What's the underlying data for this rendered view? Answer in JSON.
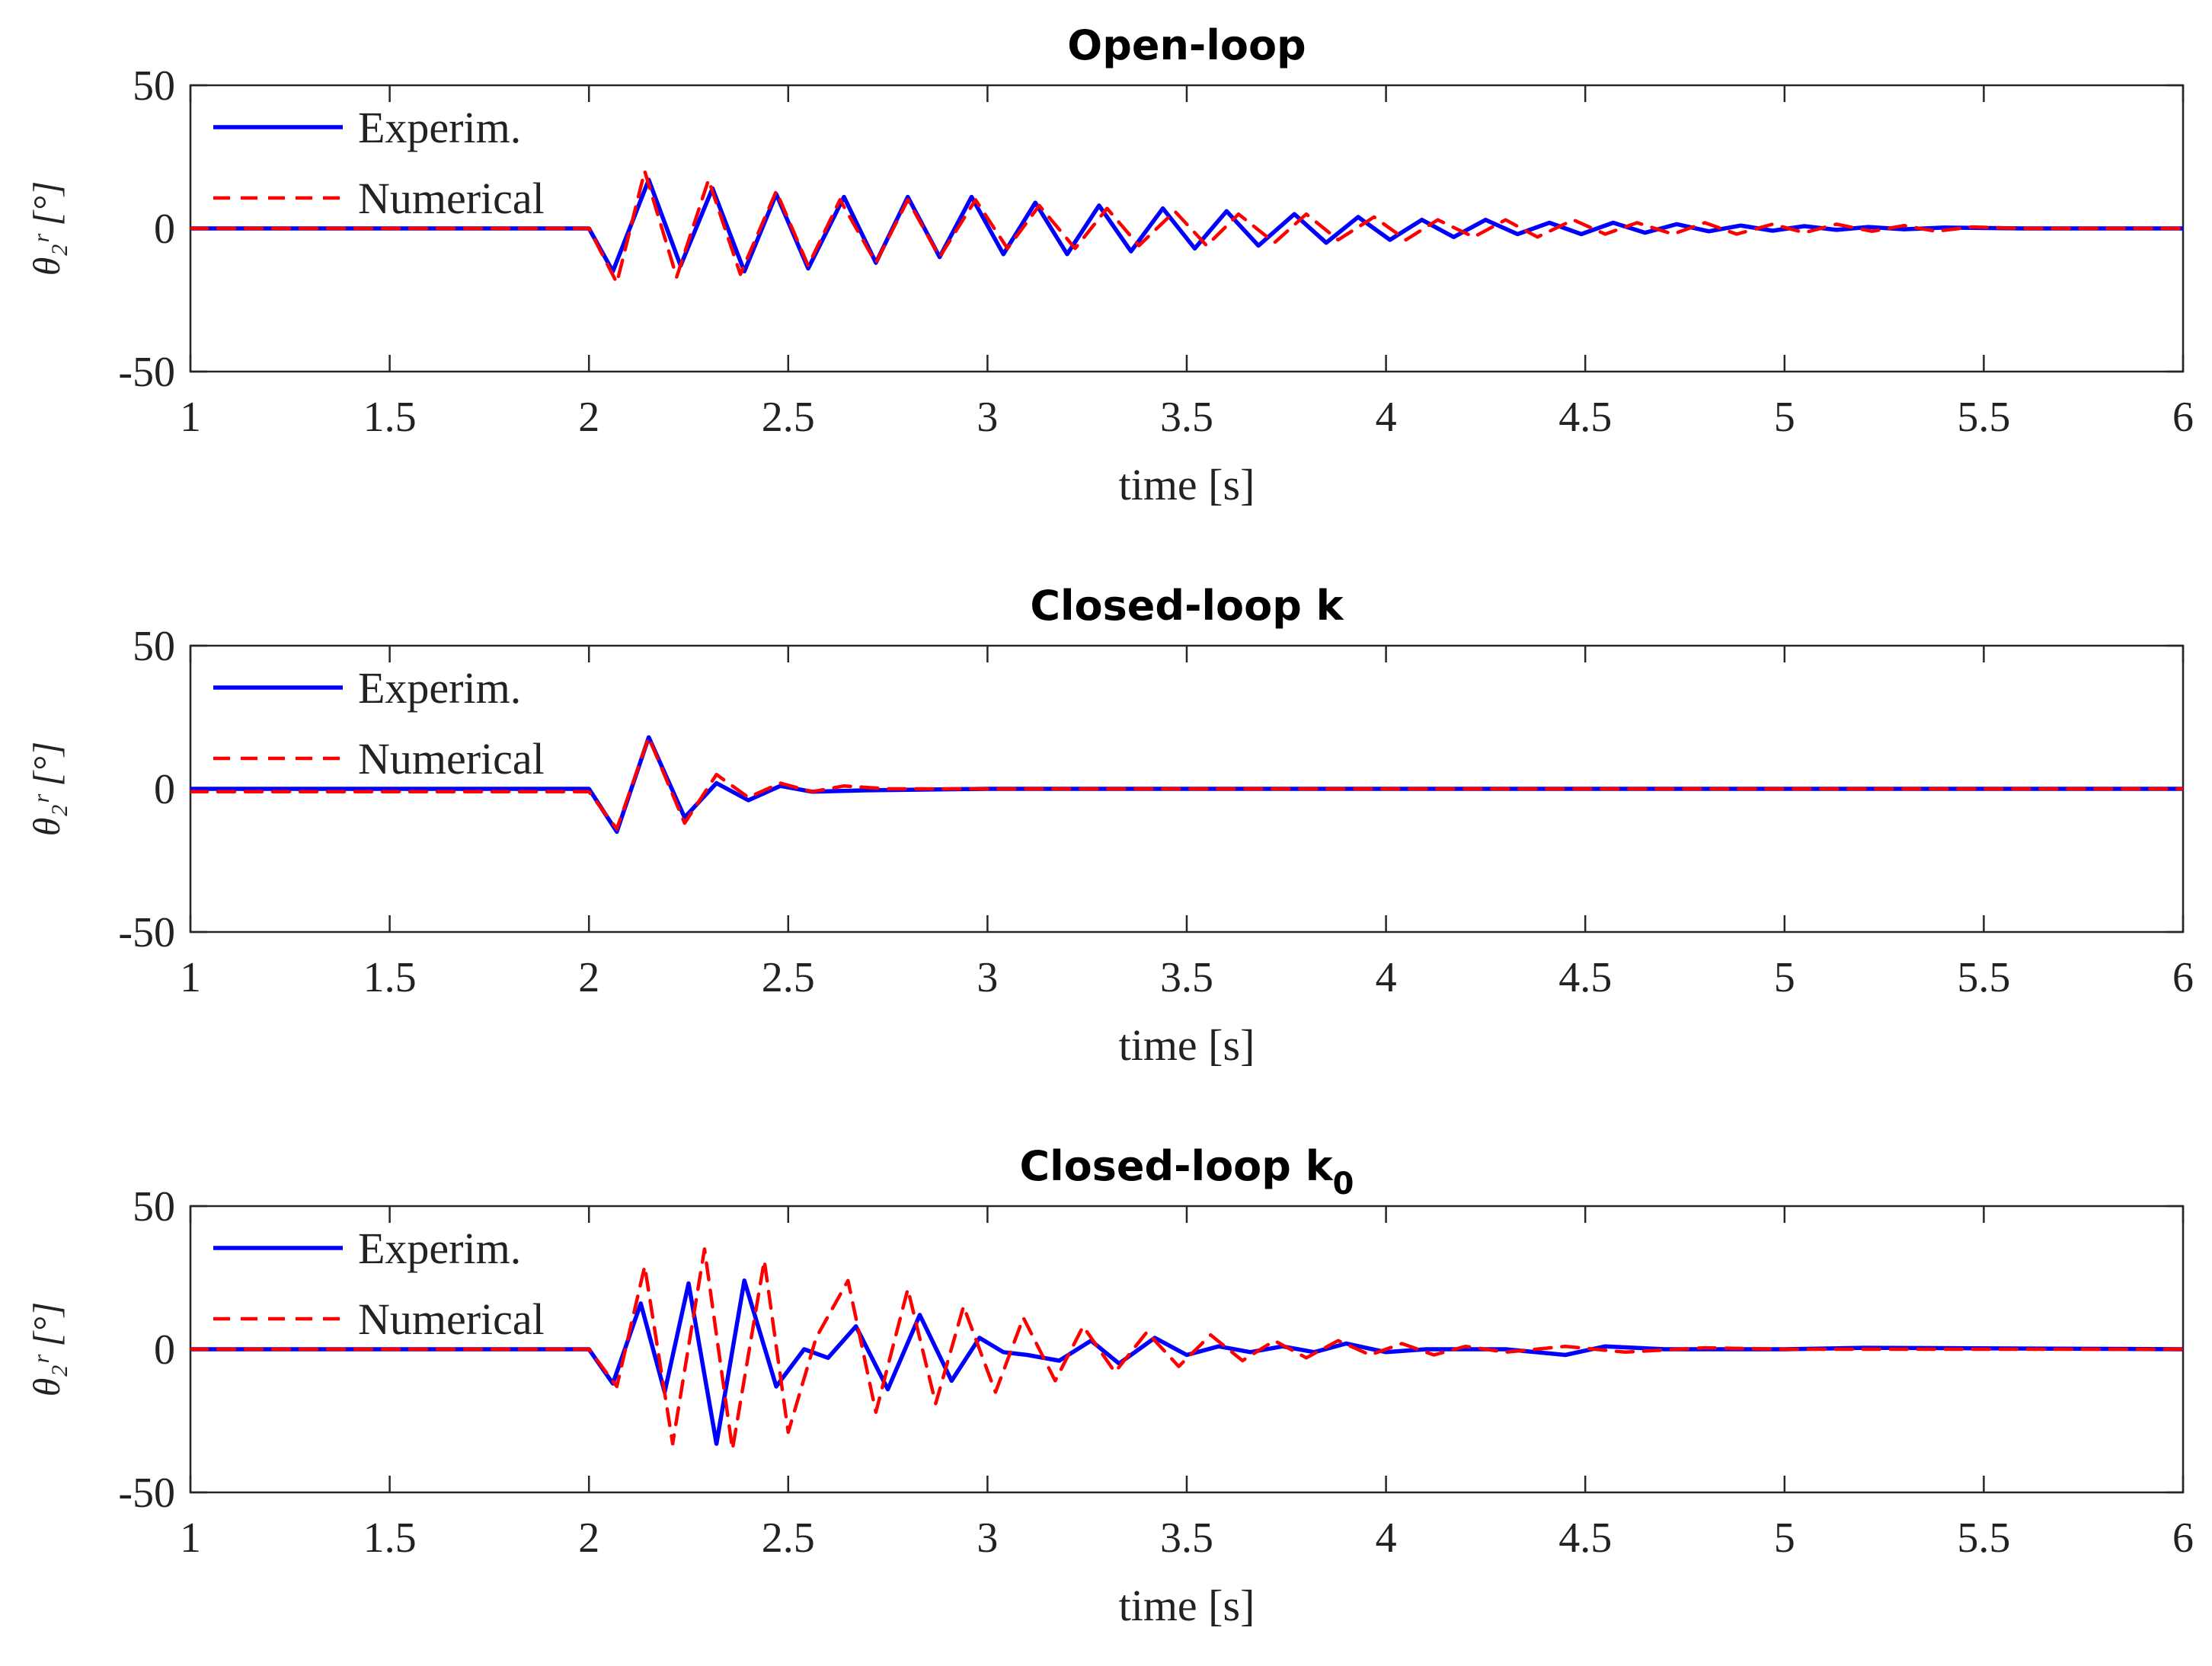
{
  "chart_data": [
    {
      "type": "line",
      "title": "Open-loop",
      "xlabel": "time [s]",
      "ylabel": "θ₂ʳ [°]",
      "xlim": [
        1,
        6
      ],
      "ylim": [
        -50,
        50
      ],
      "xticks": [
        "1",
        "1.5",
        "2",
        "2.5",
        "3",
        "3.5",
        "4",
        "4.5",
        "5",
        "5.5",
        "6"
      ],
      "yticks": [
        "50",
        "0",
        "-50"
      ],
      "legend": [
        "Experim.",
        "Numerical"
      ],
      "series": [
        {
          "name": "Experim.",
          "color": "#0000ff",
          "style": "solid",
          "x": [
            1,
            2.0,
            2.06,
            2.15,
            2.23,
            2.31,
            2.39,
            2.47,
            2.55,
            2.64,
            2.72,
            2.8,
            2.88,
            2.96,
            3.04,
            3.12,
            3.2,
            3.28,
            3.36,
            3.44,
            3.52,
            3.6,
            3.68,
            3.77,
            3.85,
            3.93,
            4.01,
            4.09,
            4.17,
            4.25,
            4.33,
            4.41,
            4.49,
            4.57,
            4.65,
            4.73,
            4.81,
            4.89,
            4.97,
            5.05,
            5.13,
            5.21,
            5.3,
            5.4,
            5.6,
            6
          ],
          "y": [
            0,
            0,
            -15,
            17,
            -13,
            14,
            -15,
            12,
            -14,
            11,
            -12,
            11,
            -10,
            11,
            -9,
            9,
            -9,
            8,
            -8,
            7,
            -7,
            6,
            -6,
            5,
            -5,
            4,
            -4,
            3,
            -3,
            3,
            -2,
            2,
            -2,
            2,
            -1.5,
            1.5,
            -1,
            1,
            -0.8,
            0.8,
            -0.5,
            0.5,
            -0.3,
            0.3,
            0,
            0
          ]
        },
        {
          "name": "Numerical",
          "color": "#ff0000",
          "style": "dashed",
          "x": [
            1,
            2.0,
            2.07,
            2.14,
            2.22,
            2.3,
            2.38,
            2.47,
            2.55,
            2.63,
            2.72,
            2.8,
            2.88,
            2.97,
            3.05,
            3.13,
            3.22,
            3.3,
            3.38,
            3.47,
            3.55,
            3.63,
            3.72,
            3.8,
            3.88,
            3.97,
            4.05,
            4.13,
            4.22,
            4.3,
            4.38,
            4.47,
            4.55,
            4.63,
            4.72,
            4.8,
            4.88,
            4.97,
            5.05,
            5.13,
            5.22,
            5.3,
            5.38,
            5.47,
            5.6,
            6
          ],
          "y": [
            0,
            0,
            -19,
            20,
            -17,
            17,
            -16,
            13,
            -13,
            10,
            -12,
            10,
            -10,
            10,
            -7,
            8,
            -7,
            7,
            -6,
            6,
            -6,
            5,
            -5,
            5,
            -4,
            4,
            -4,
            3,
            -3,
            3,
            -3,
            3,
            -2,
            2,
            -2,
            2,
            -2,
            1.5,
            -1.5,
            1.5,
            -1,
            1,
            -1,
            0.5,
            0,
            0
          ]
        }
      ]
    },
    {
      "type": "line",
      "title": "Closed-loop  k",
      "xlabel": "time [s]",
      "ylabel": "θ₂ʳ [°]",
      "xlim": [
        1,
        6
      ],
      "ylim": [
        -50,
        50
      ],
      "xticks": [
        "1",
        "1.5",
        "2",
        "2.5",
        "3",
        "3.5",
        "4",
        "4.5",
        "5",
        "5.5",
        "6"
      ],
      "yticks": [
        "50",
        "0",
        "-50"
      ],
      "legend": [
        "Experim.",
        "Numerical"
      ],
      "series": [
        {
          "name": "Experim.",
          "color": "#0000ff",
          "style": "solid",
          "x": [
            1,
            2.0,
            2.07,
            2.15,
            2.24,
            2.32,
            2.4,
            2.48,
            2.56,
            2.7,
            3,
            6
          ],
          "y": [
            0,
            0,
            -15,
            18,
            -10,
            2,
            -4,
            1,
            -1,
            -0.5,
            0,
            0
          ]
        },
        {
          "name": "Numerical",
          "color": "#ff0000",
          "style": "dashed",
          "x": [
            1,
            2.0,
            2.07,
            2.15,
            2.24,
            2.32,
            2.4,
            2.48,
            2.56,
            2.64,
            2.75,
            3,
            6
          ],
          "y": [
            -1,
            -1,
            -14,
            18,
            -12,
            5,
            -3,
            2,
            -1,
            1,
            0,
            0,
            0
          ]
        }
      ]
    },
    {
      "type": "line",
      "title": "Closed-loop  k",
      "title_subscript": "0",
      "xlabel": "time [s]",
      "ylabel": "θ₂ʳ [°]",
      "xlim": [
        1,
        6
      ],
      "ylim": [
        -50,
        50
      ],
      "xticks": [
        "1",
        "1.5",
        "2",
        "2.5",
        "3",
        "3.5",
        "4",
        "4.5",
        "5",
        "5.5",
        "6"
      ],
      "yticks": [
        "50",
        "0",
        "-50"
      ],
      "legend": [
        "Experim.",
        "Numerical"
      ],
      "series": [
        {
          "name": "Experim.",
          "color": "#0000ff",
          "style": "solid",
          "x": [
            1,
            2.0,
            2.06,
            2.13,
            2.19,
            2.25,
            2.32,
            2.39,
            2.47,
            2.54,
            2.6,
            2.67,
            2.75,
            2.83,
            2.91,
            2.98,
            3.04,
            3.1,
            3.18,
            3.26,
            3.33,
            3.42,
            3.5,
            3.58,
            3.66,
            3.74,
            3.82,
            3.9,
            4.0,
            4.1,
            4.3,
            4.45,
            4.55,
            4.7,
            5.0,
            5.2,
            6
          ],
          "y": [
            0,
            0,
            -12,
            16,
            -15,
            23,
            -33,
            24,
            -13,
            0,
            -3,
            8,
            -14,
            12,
            -11,
            4,
            -1,
            -2,
            -4,
            3,
            -5,
            4,
            -2,
            1,
            -1,
            1,
            -1,
            2,
            -1,
            0,
            0,
            -2,
            1,
            0,
            0,
            0.5,
            0
          ]
        },
        {
          "name": "Numerical",
          "color": "#ff0000",
          "style": "dashed",
          "x": [
            1,
            2.0,
            2.07,
            2.14,
            2.21,
            2.29,
            2.36,
            2.44,
            2.5,
            2.57,
            2.65,
            2.72,
            2.8,
            2.87,
            2.94,
            3.02,
            3.09,
            3.17,
            3.24,
            3.32,
            3.4,
            3.48,
            3.56,
            3.64,
            3.72,
            3.8,
            3.88,
            3.96,
            4.04,
            4.12,
            4.2,
            4.3,
            4.45,
            4.6,
            4.8,
            5.0,
            6
          ],
          "y": [
            0,
            0,
            -13,
            29,
            -33,
            35,
            -35,
            31,
            -29,
            4,
            24,
            -22,
            21,
            -19,
            15,
            -15,
            11,
            -11,
            8,
            -8,
            6,
            -6,
            5,
            -4,
            3,
            -3,
            3,
            -2,
            2,
            -2,
            1,
            -1,
            1,
            -1,
            0.5,
            0,
            0
          ]
        }
      ]
    }
  ]
}
